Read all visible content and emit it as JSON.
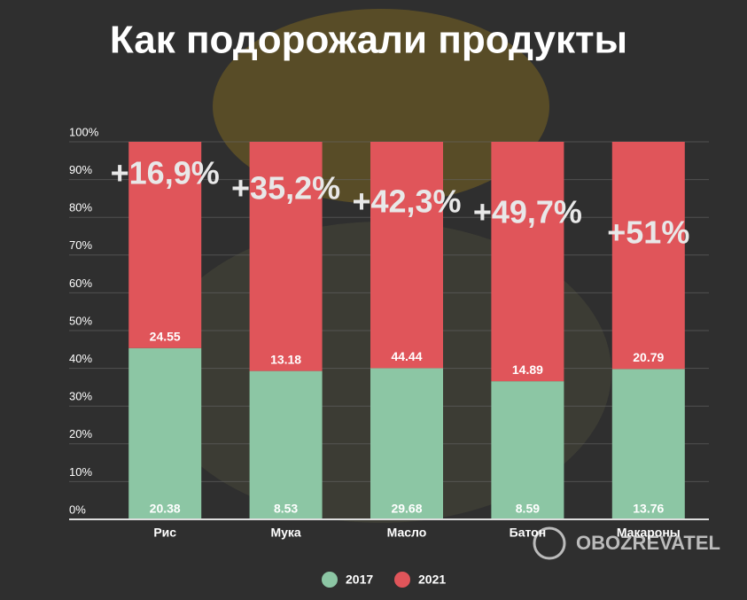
{
  "chart_data": {
    "type": "bar",
    "stacked": "percent",
    "title": "Как подорожали продукты",
    "categories": [
      "Рис",
      "Мука",
      "Масло",
      "Батон",
      "Макароны"
    ],
    "series": [
      {
        "name": "2017",
        "color": "#8cc6a4",
        "values": [
          20.38,
          8.53,
          29.68,
          8.59,
          13.76
        ]
      },
      {
        "name": "2021",
        "color": "#e0555a",
        "values": [
          24.55,
          13.18,
          44.44,
          14.89,
          20.79
        ]
      }
    ],
    "annotations": [
      "+16,9%",
      "+35,2%",
      "+42,3%",
      "+49,7%",
      "+51%"
    ],
    "ylim": [
      0,
      100
    ],
    "yticks": [
      {
        "value": 0,
        "label": "0%"
      },
      {
        "value": 10,
        "label": "10%"
      },
      {
        "value": 20,
        "label": "20%"
      },
      {
        "value": 30,
        "label": "30%"
      },
      {
        "value": 40,
        "label": "40%"
      },
      {
        "value": 50,
        "label": "50%"
      },
      {
        "value": 60,
        "label": "60%"
      },
      {
        "value": 70,
        "label": "70%"
      },
      {
        "value": 80,
        "label": "80%"
      },
      {
        "value": 90,
        "label": "90%"
      },
      {
        "value": 100,
        "label": "100%"
      }
    ],
    "grid": true,
    "legend": "bottom",
    "watermark": "OBOZREVATEL"
  }
}
